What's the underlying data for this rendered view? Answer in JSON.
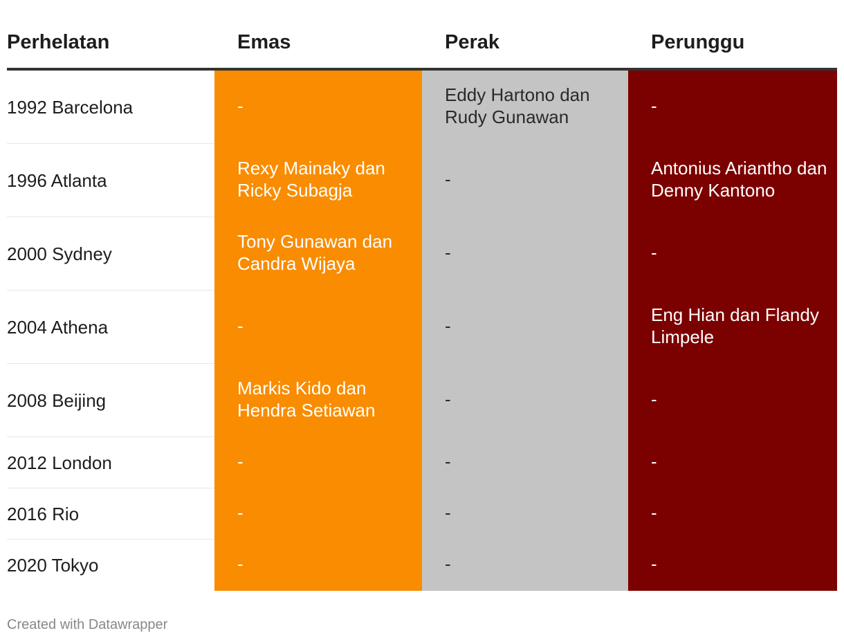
{
  "chart_data": {
    "type": "table",
    "columns": [
      "Perhelatan",
      "Emas",
      "Perak",
      "Perunggu"
    ],
    "rows": [
      [
        "1992 Barcelona",
        "-",
        "Eddy Hartono dan Rudy Gunawan",
        "-"
      ],
      [
        "1996 Atlanta",
        "Rexy Mainaky dan Ricky Subagja",
        "-",
        "Antonius Ariantho dan Denny Kantono"
      ],
      [
        "2000 Sydney",
        "Tony Gunawan dan Candra Wijaya",
        "-",
        "-"
      ],
      [
        "2004 Athena",
        "-",
        "-",
        "Eng Hian dan Flandy Limpele"
      ],
      [
        "2008 Beijing",
        "Markis Kido dan Hendra Setiawan",
        "-",
        "-"
      ],
      [
        "2012 London",
        "-",
        "-",
        "-"
      ],
      [
        "2016 Rio",
        "-",
        "-",
        "-"
      ],
      [
        "2020 Tokyo",
        "-",
        "-",
        "-"
      ]
    ],
    "column_colors": [
      "#ffffff",
      "#f98c00",
      "#c4c4c4",
      "#7b0000"
    ]
  },
  "footer": {
    "credit": "Created with Datawrapper"
  }
}
